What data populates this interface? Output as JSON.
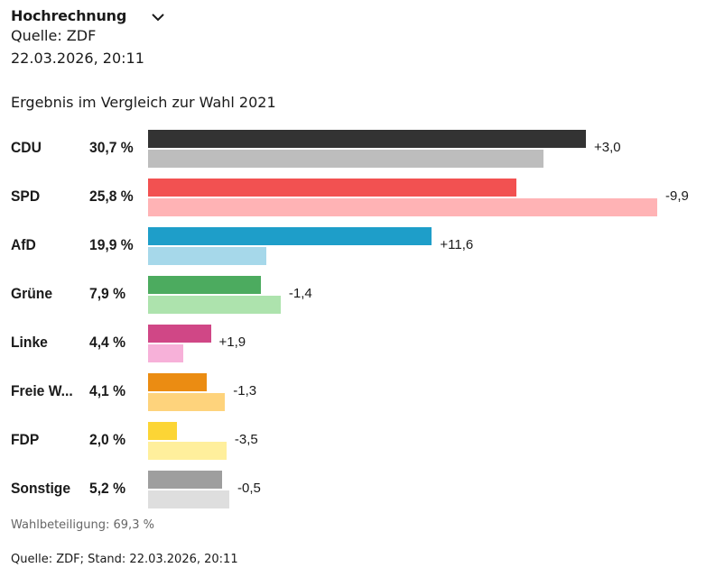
{
  "header": {
    "title": "Hochrechnung",
    "source": "Quelle: ZDF",
    "datetime": "22.03.2026, 20:11"
  },
  "chart_data": {
    "type": "bar",
    "title": "Ergebnis im Vergleich zur Wahl 2021",
    "categories": [
      "CDU",
      "SPD",
      "AfD",
      "Grüne",
      "Linke",
      "Freie W...",
      "FDP",
      "Sonstige"
    ],
    "series": [
      {
        "name": "2026",
        "values": [
          30.7,
          25.8,
          19.9,
          7.9,
          4.4,
          4.1,
          2.0,
          5.2
        ]
      },
      {
        "name": "2021",
        "values": [
          27.7,
          35.7,
          8.3,
          9.3,
          2.5,
          5.4,
          5.5,
          5.7
        ]
      }
    ],
    "value_labels": [
      "30,7 %",
      "25,8 %",
      "19,9 %",
      "7,9 %",
      "4,4 %",
      "4,1 %",
      "2,0 %",
      "5,2 %"
    ],
    "diff_labels": [
      "+3,0",
      "-9,9",
      "+11,6",
      "-1,4",
      "+1,9",
      "-1,3",
      "-3,5",
      "-0,5"
    ],
    "colors_current": [
      "#333333",
      "#f25151",
      "#1e9ec9",
      "#4cab5f",
      "#d04786",
      "#eb8c12",
      "#fcd535",
      "#9e9e9e"
    ],
    "colors_previous": [
      "#bdbdbd",
      "#ffb3b5",
      "#a6d8ea",
      "#ade3ad",
      "#f7b1d9",
      "#fed37c",
      "#ffef9c",
      "#dedede"
    ],
    "xlim": [
      0,
      35.7
    ]
  },
  "footer": {
    "turnout": "Wahlbeteiligung: 69,3 %",
    "source": "Quelle: ZDF; Stand: 22.03.2026, 20:11"
  }
}
